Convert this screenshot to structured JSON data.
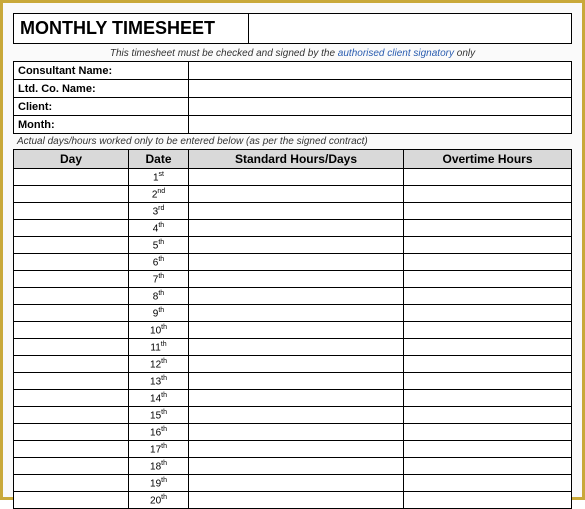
{
  "title": "MONTHLY TIMESHEET",
  "instruction_prefix": "This timesheet must be checked and signed by the ",
  "instruction_link": "authorised client signatory",
  "instruction_suffix": " only",
  "info_rows": [
    {
      "label": "Consultant Name:",
      "value": ""
    },
    {
      "label": "Ltd. Co. Name:",
      "value": ""
    },
    {
      "label": "Client:",
      "value": ""
    },
    {
      "label": "Month:",
      "value": ""
    }
  ],
  "sub_instruction": "Actual days/hours worked only to be entered below (as per the signed contract)",
  "columns": {
    "day": "Day",
    "date": "Date",
    "standard": "Standard Hours/Days",
    "overtime": "Overtime Hours"
  },
  "rows": [
    {
      "day": "",
      "num": "1",
      "ord": "st",
      "standard": "",
      "overtime": ""
    },
    {
      "day": "",
      "num": "2",
      "ord": "nd",
      "standard": "",
      "overtime": ""
    },
    {
      "day": "",
      "num": "3",
      "ord": "rd",
      "standard": "",
      "overtime": ""
    },
    {
      "day": "",
      "num": "4",
      "ord": "th",
      "standard": "",
      "overtime": ""
    },
    {
      "day": "",
      "num": "5",
      "ord": "th",
      "standard": "",
      "overtime": ""
    },
    {
      "day": "",
      "num": "6",
      "ord": "th",
      "standard": "",
      "overtime": ""
    },
    {
      "day": "",
      "num": "7",
      "ord": "th",
      "standard": "",
      "overtime": ""
    },
    {
      "day": "",
      "num": "8",
      "ord": "th",
      "standard": "",
      "overtime": ""
    },
    {
      "day": "",
      "num": "9",
      "ord": "th",
      "standard": "",
      "overtime": ""
    },
    {
      "day": "",
      "num": "10",
      "ord": "th",
      "standard": "",
      "overtime": ""
    },
    {
      "day": "",
      "num": "11",
      "ord": "th",
      "standard": "",
      "overtime": ""
    },
    {
      "day": "",
      "num": "12",
      "ord": "th",
      "standard": "",
      "overtime": ""
    },
    {
      "day": "",
      "num": "13",
      "ord": "th",
      "standard": "",
      "overtime": ""
    },
    {
      "day": "",
      "num": "14",
      "ord": "th",
      "standard": "",
      "overtime": ""
    },
    {
      "day": "",
      "num": "15",
      "ord": "th",
      "standard": "",
      "overtime": ""
    },
    {
      "day": "",
      "num": "16",
      "ord": "th",
      "standard": "",
      "overtime": ""
    },
    {
      "day": "",
      "num": "17",
      "ord": "th",
      "standard": "",
      "overtime": ""
    },
    {
      "day": "",
      "num": "18",
      "ord": "th",
      "standard": "",
      "overtime": ""
    },
    {
      "day": "",
      "num": "19",
      "ord": "th",
      "standard": "",
      "overtime": ""
    },
    {
      "day": "",
      "num": "20",
      "ord": "th",
      "standard": "",
      "overtime": ""
    }
  ],
  "colors": {
    "border_outer": "#c9a93a",
    "header_bg": "#d9d9d9",
    "link": "#2a5db0"
  }
}
